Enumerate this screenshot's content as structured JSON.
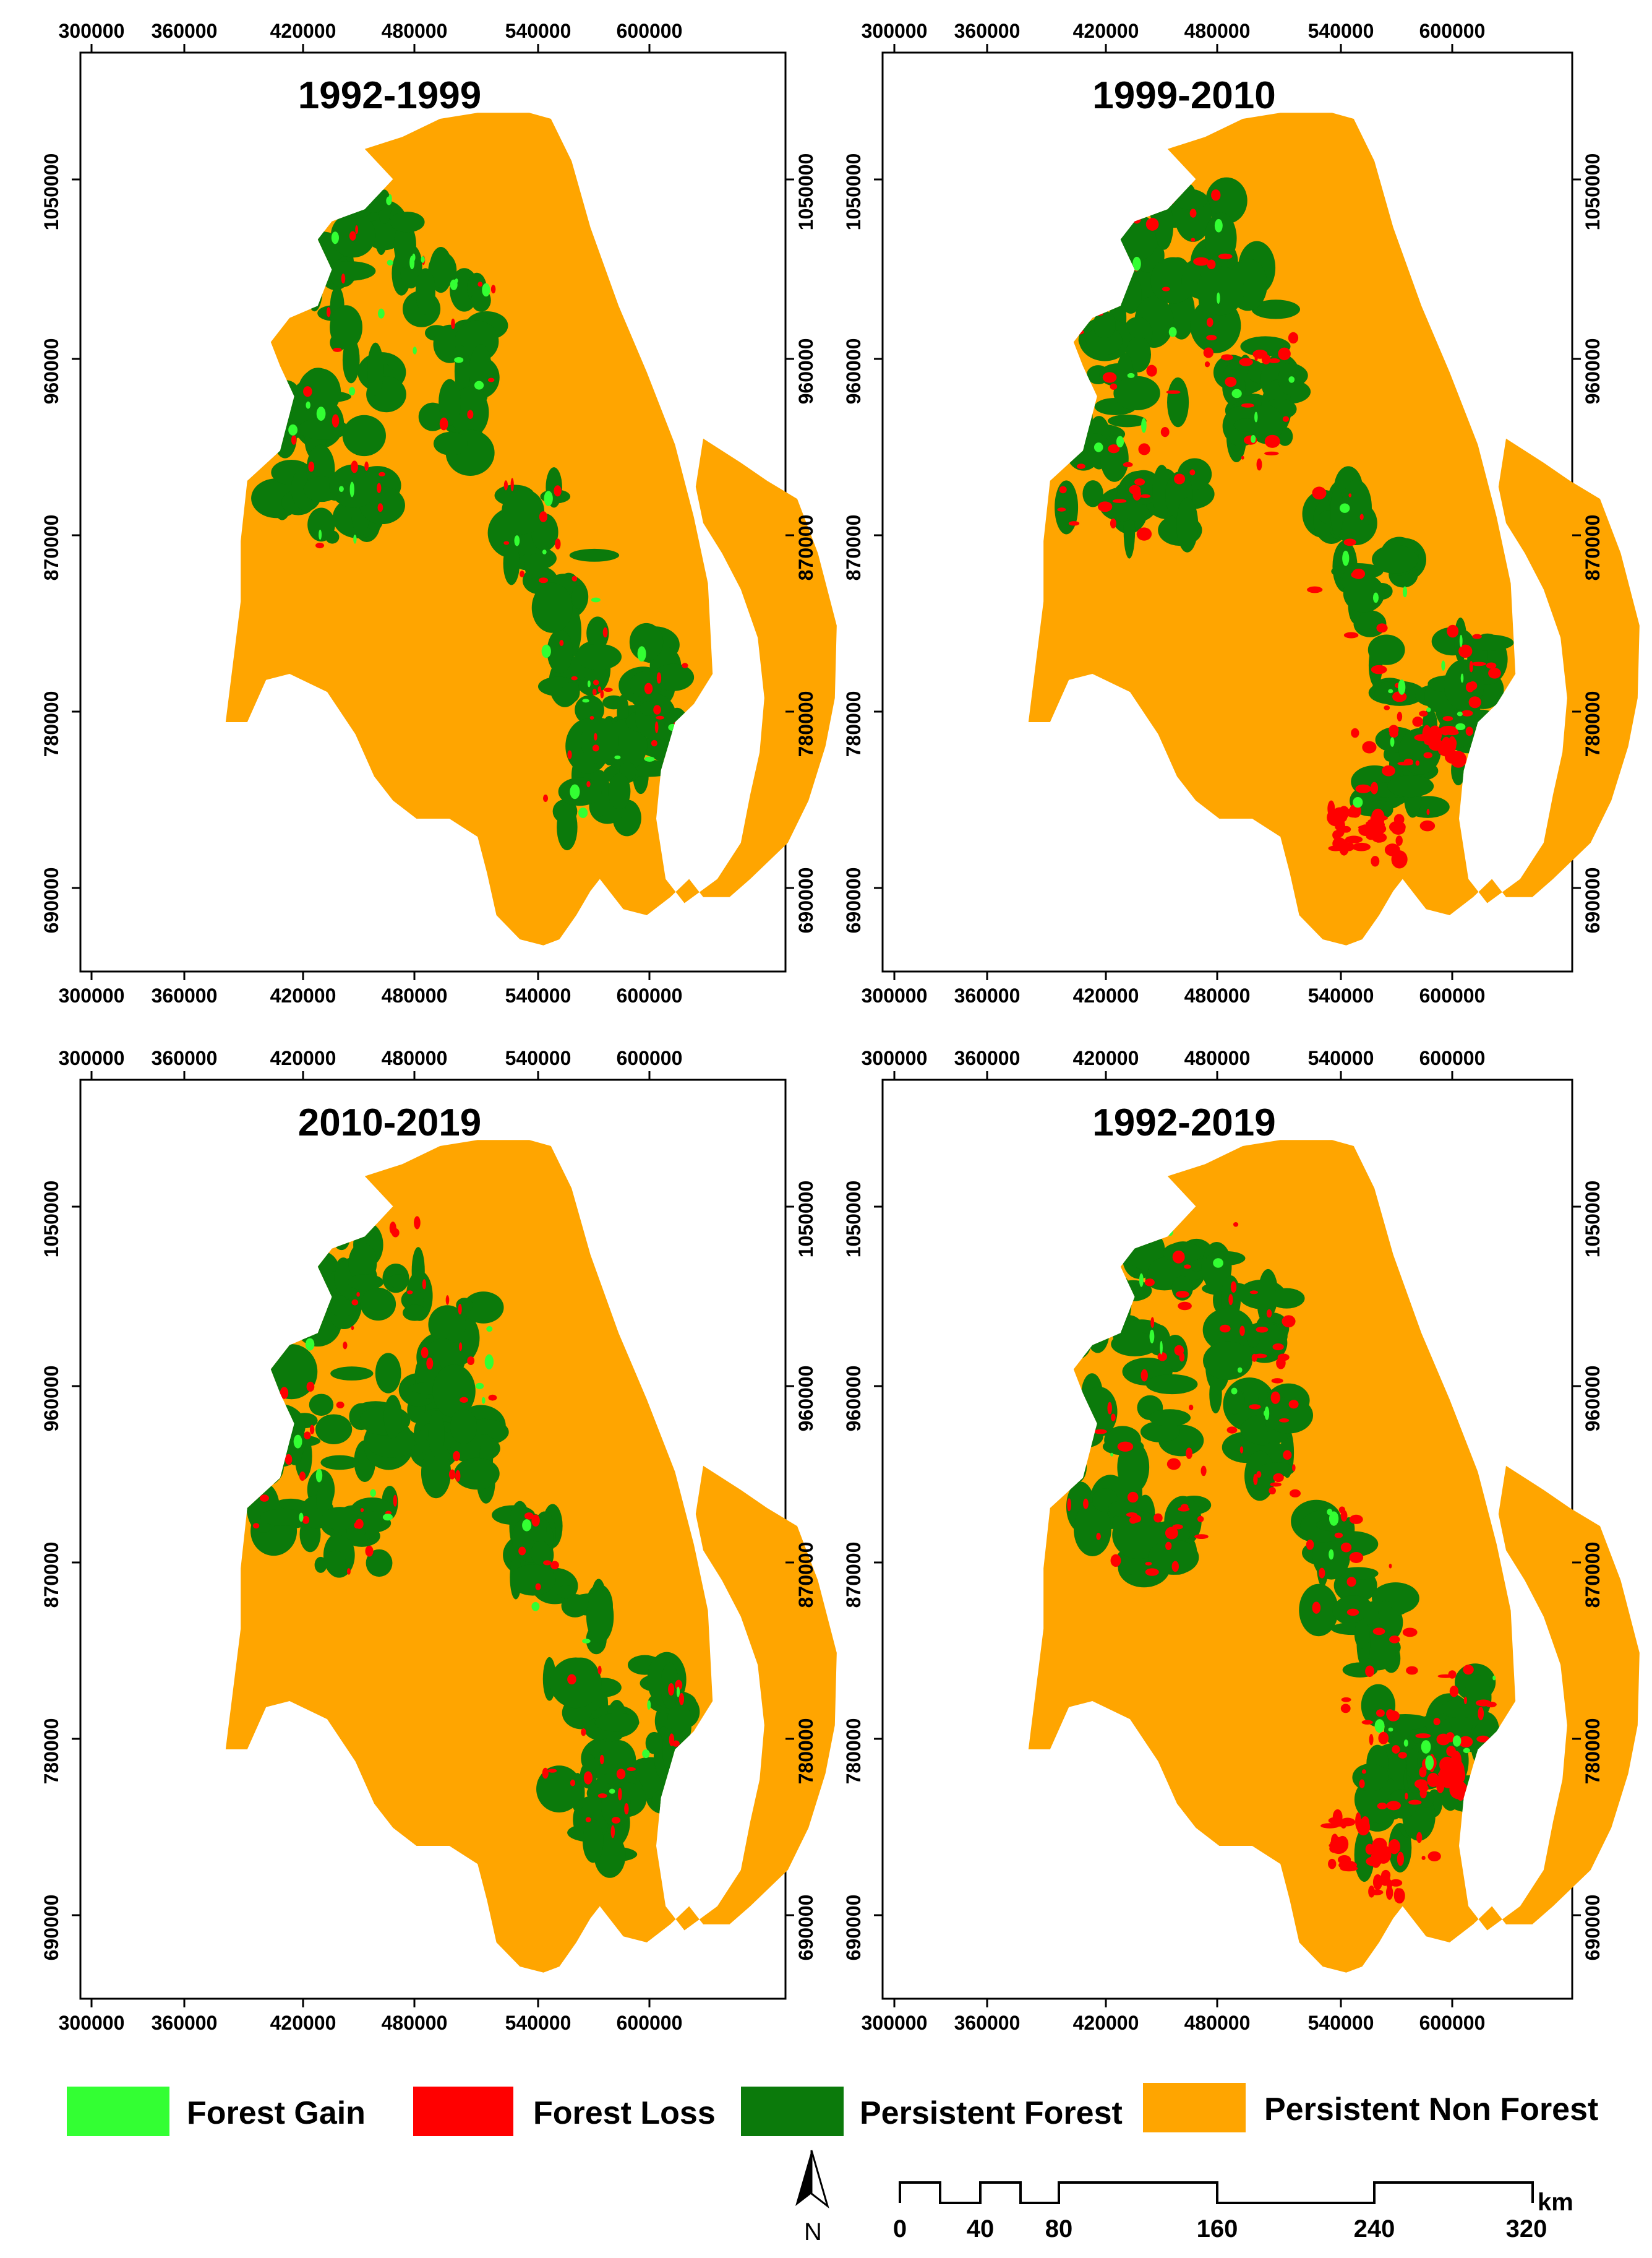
{
  "colors": {
    "forest_gain": "#33ff33",
    "forest_loss": "#ff0000",
    "persistent_forest": "#0b7a0b",
    "persistent_non_forest": "#ffa500"
  },
  "axes": {
    "x_ticks": [
      "300000",
      "360000",
      "420000",
      "480000",
      "540000",
      "600000"
    ],
    "y_ticks": [
      "1050000",
      "960000",
      "870000",
      "780000",
      "690000"
    ]
  },
  "panels": [
    {
      "title": "1992-1999"
    },
    {
      "title": "1999-2010"
    },
    {
      "title": "2010-2019"
    },
    {
      "title": "1992-2019"
    }
  ],
  "legend": [
    {
      "label": "Forest Gain",
      "color_key": "forest_gain"
    },
    {
      "label": "Forest Loss",
      "color_key": "forest_loss"
    },
    {
      "label": "Persistent Forest",
      "color_key": "persistent_forest"
    },
    {
      "label": "Persistent Non Forest",
      "color_key": "persistent_non_forest"
    }
  ],
  "north_arrow": {
    "label": "N"
  },
  "scale_bar": {
    "labels": [
      "0",
      "40",
      "80",
      "160",
      "240",
      "320"
    ],
    "unit": "km"
  }
}
